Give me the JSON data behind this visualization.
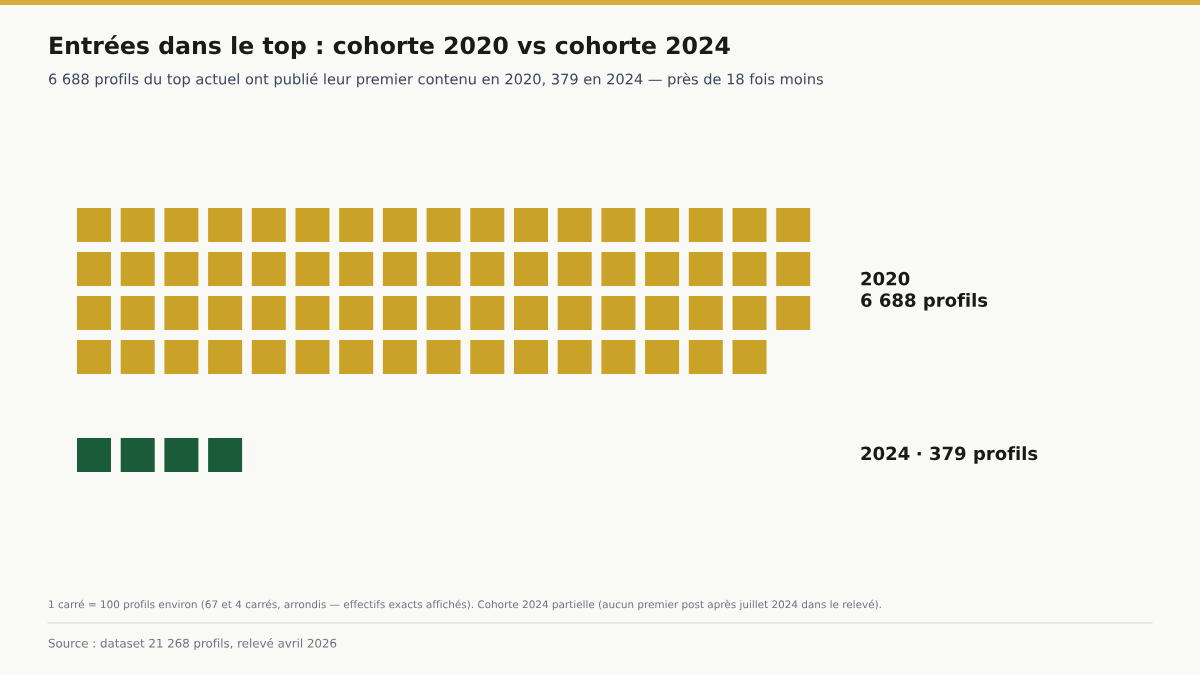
{
  "chart_data": {
    "type": "other",
    "title": "Entrées dans le top : cohorte 2020 vs cohorte 2024",
    "subtitle": "6 688 profils du top actuel ont publié leur premier contenu en 2020, 379 en 2024 — près de 18 fois moins",
    "categories": [
      "2020",
      "2024"
    ],
    "value_labels": [
      "6 688 profils",
      "· 379 profils"
    ],
    "values": [
      6688,
      379
    ],
    "colors": [
      "#c9a227",
      "#1a5c3a"
    ],
    "annotations": [
      "1 carré = 100 profils environ (67 et 4 carrés, arrondis — effectifs exacts affichés). Cohorte 2024 partielle (aucun premier post après juillet 2024 dans le relevé).",
      "Source : dataset 21 268 profils, relevé avril 2026"
    ]
  }
}
